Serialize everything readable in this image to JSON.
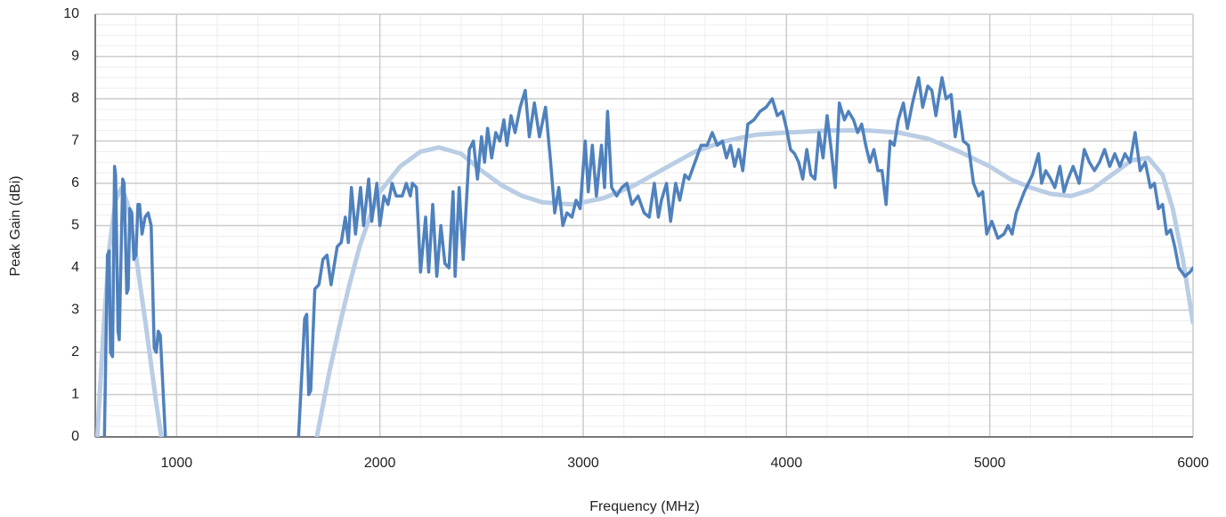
{
  "chart_data": {
    "type": "line",
    "xlabel": "Frequency (MHz)",
    "ylabel": "Peak Gain (dBi)",
    "xlim": [
      600,
      6000
    ],
    "ylim": [
      0,
      10
    ],
    "xticks": [
      1000,
      2000,
      3000,
      4000,
      5000,
      6000
    ],
    "yticks": [
      0,
      1,
      2,
      3,
      4,
      5,
      6,
      7,
      8,
      9,
      10
    ],
    "grid": true,
    "minor_grid": true,
    "series": [
      {
        "color": "#b9cde5",
        "x": [
          610,
          640,
          670,
          700,
          730,
          760,
          800,
          850,
          900,
          925,
          1300,
          1690,
          1750,
          1800,
          1850,
          1900,
          1950,
          2000,
          2100,
          2200,
          2290,
          2400,
          2500,
          2600,
          2700,
          2800,
          2950,
          3100,
          3250,
          3400,
          3550,
          3700,
          3850,
          4000,
          4200,
          4400,
          4550,
          4700,
          4850,
          5000,
          5100,
          5200,
          5300,
          5400,
          5500,
          5600,
          5700,
          5780,
          5850,
          5900,
          5950,
          6000
        ],
        "values": [
          0,
          2.5,
          4.5,
          5.6,
          5.9,
          5.5,
          4.3,
          2.6,
          0.8,
          0,
          null,
          0,
          1.5,
          2.6,
          3.6,
          4.5,
          5.2,
          5.8,
          6.4,
          6.75,
          6.85,
          6.7,
          6.3,
          5.95,
          5.7,
          5.55,
          5.5,
          5.65,
          5.95,
          6.35,
          6.75,
          7.0,
          7.15,
          7.2,
          7.25,
          7.25,
          7.2,
          7.05,
          6.75,
          6.4,
          6.1,
          5.9,
          5.75,
          5.7,
          5.85,
          6.2,
          6.55,
          6.6,
          6.2,
          5.4,
          4.2,
          2.7
        ]
      },
      {
        "color": "#4f81bd",
        "x": [
          645,
          660,
          668,
          675,
          685,
          695,
          700,
          712,
          718,
          735,
          742,
          755,
          762,
          770,
          780,
          790,
          800,
          810,
          818,
          830,
          845,
          860,
          875,
          890,
          900,
          910,
          920,
          945,
          1300,
          1600,
          1630,
          1640,
          1650,
          1660,
          1680,
          1700,
          1720,
          1740,
          1760,
          1790,
          1810,
          1830,
          1845,
          1860,
          1880,
          1905,
          1920,
          1945,
          1960,
          1985,
          2000,
          2020,
          2040,
          2060,
          2080,
          2110,
          2130,
          2150,
          2160,
          2180,
          2200,
          2225,
          2240,
          2260,
          2280,
          2300,
          2320,
          2340,
          2360,
          2370,
          2390,
          2410,
          2440,
          2460,
          2480,
          2500,
          2515,
          2530,
          2550,
          2570,
          2590,
          2610,
          2625,
          2645,
          2665,
          2690,
          2715,
          2735,
          2760,
          2785,
          2815,
          2840,
          2860,
          2880,
          2900,
          2920,
          2945,
          2965,
          2985,
          3010,
          3025,
          3045,
          3065,
          3090,
          3105,
          3120,
          3140,
          3165,
          3190,
          3215,
          3240,
          3270,
          3300,
          3325,
          3350,
          3370,
          3385,
          3410,
          3430,
          3455,
          3475,
          3500,
          3520,
          3550,
          3580,
          3610,
          3635,
          3660,
          3685,
          3705,
          3725,
          3745,
          3765,
          3785,
          3810,
          3840,
          3870,
          3900,
          3930,
          3955,
          3980,
          4000,
          4020,
          4040,
          4060,
          4080,
          4100,
          4120,
          4140,
          4160,
          4180,
          4200,
          4220,
          4240,
          4260,
          4285,
          4305,
          4330,
          4350,
          4370,
          4390,
          4410,
          4430,
          4450,
          4470,
          4490,
          4510,
          4530,
          4550,
          4575,
          4595,
          4620,
          4650,
          4670,
          4695,
          4715,
          4735,
          4765,
          4785,
          4810,
          4830,
          4850,
          4870,
          4895,
          4920,
          4945,
          4965,
          4985,
          5010,
          5040,
          5070,
          5090,
          5110,
          5130,
          5170,
          5210,
          5240,
          5255,
          5275,
          5300,
          5320,
          5345,
          5365,
          5385,
          5410,
          5440,
          5465,
          5490,
          5515,
          5540,
          5565,
          5590,
          5615,
          5640,
          5665,
          5690,
          5715,
          5740,
          5765,
          5790,
          5810,
          5830,
          5850,
          5870,
          5890,
          5910,
          5930,
          5960,
          5985,
          6000
        ],
        "values": [
          0,
          4.3,
          4.4,
          2.0,
          1.9,
          6.4,
          6.2,
          2.5,
          2.3,
          6.1,
          6.0,
          3.4,
          3.5,
          5.4,
          5.3,
          4.2,
          4.3,
          5.5,
          5.5,
          4.8,
          5.2,
          5.3,
          5.0,
          2.1,
          2.0,
          2.5,
          2.4,
          0,
          null,
          0,
          2.8,
          2.9,
          1.0,
          1.1,
          3.5,
          3.6,
          4.2,
          4.3,
          3.6,
          4.5,
          4.6,
          5.2,
          4.6,
          5.9,
          4.8,
          5.9,
          5.0,
          6.1,
          5.1,
          6.0,
          5.0,
          5.7,
          5.5,
          6.0,
          5.7,
          5.7,
          6.0,
          5.7,
          6.0,
          5.9,
          3.9,
          5.2,
          3.9,
          5.5,
          3.8,
          5.0,
          4.1,
          4.0,
          5.8,
          3.8,
          5.9,
          4.2,
          6.8,
          7.0,
          6.1,
          7.1,
          6.5,
          7.3,
          6.6,
          7.2,
          7.0,
          7.5,
          6.9,
          7.6,
          7.2,
          7.8,
          8.2,
          7.1,
          7.9,
          7.1,
          7.8,
          6.5,
          5.3,
          5.9,
          5.0,
          5.3,
          5.2,
          5.6,
          5.4,
          7.0,
          5.8,
          6.9,
          5.7,
          6.9,
          5.9,
          7.7,
          5.9,
          5.7,
          5.9,
          6.0,
          5.5,
          5.7,
          5.3,
          5.2,
          6.0,
          5.2,
          5.6,
          6.0,
          5.1,
          6.0,
          5.6,
          6.2,
          6.1,
          6.5,
          6.9,
          6.9,
          7.2,
          6.9,
          7.0,
          6.6,
          6.9,
          6.4,
          6.8,
          6.3,
          7.4,
          7.5,
          7.7,
          7.8,
          8.0,
          7.6,
          7.7,
          7.3,
          6.8,
          6.7,
          6.5,
          6.1,
          6.8,
          6.2,
          6.1,
          7.2,
          6.6,
          7.6,
          6.8,
          5.9,
          7.9,
          7.5,
          7.7,
          7.5,
          7.2,
          7.4,
          6.9,
          6.5,
          6.8,
          6.3,
          6.3,
          5.5,
          7.0,
          6.9,
          7.5,
          7.9,
          7.3,
          7.9,
          8.5,
          7.8,
          8.3,
          8.2,
          7.6,
          8.5,
          8.0,
          8.1,
          7.1,
          7.7,
          7.0,
          6.9,
          6.0,
          5.7,
          5.8,
          4.8,
          5.1,
          4.7,
          4.8,
          5.0,
          4.8,
          5.3,
          5.8,
          6.2,
          6.7,
          6.0,
          6.3,
          6.1,
          5.9,
          6.4,
          5.8,
          6.1,
          6.4,
          6.0,
          6.8,
          6.5,
          6.3,
          6.5,
          6.8,
          6.4,
          6.7,
          6.4,
          6.7,
          6.5,
          7.2,
          6.3,
          6.5,
          5.9,
          6.0,
          5.4,
          5.5,
          4.8,
          4.9,
          4.5,
          4.0,
          3.8,
          3.9,
          4.0
        ]
      }
    ]
  }
}
